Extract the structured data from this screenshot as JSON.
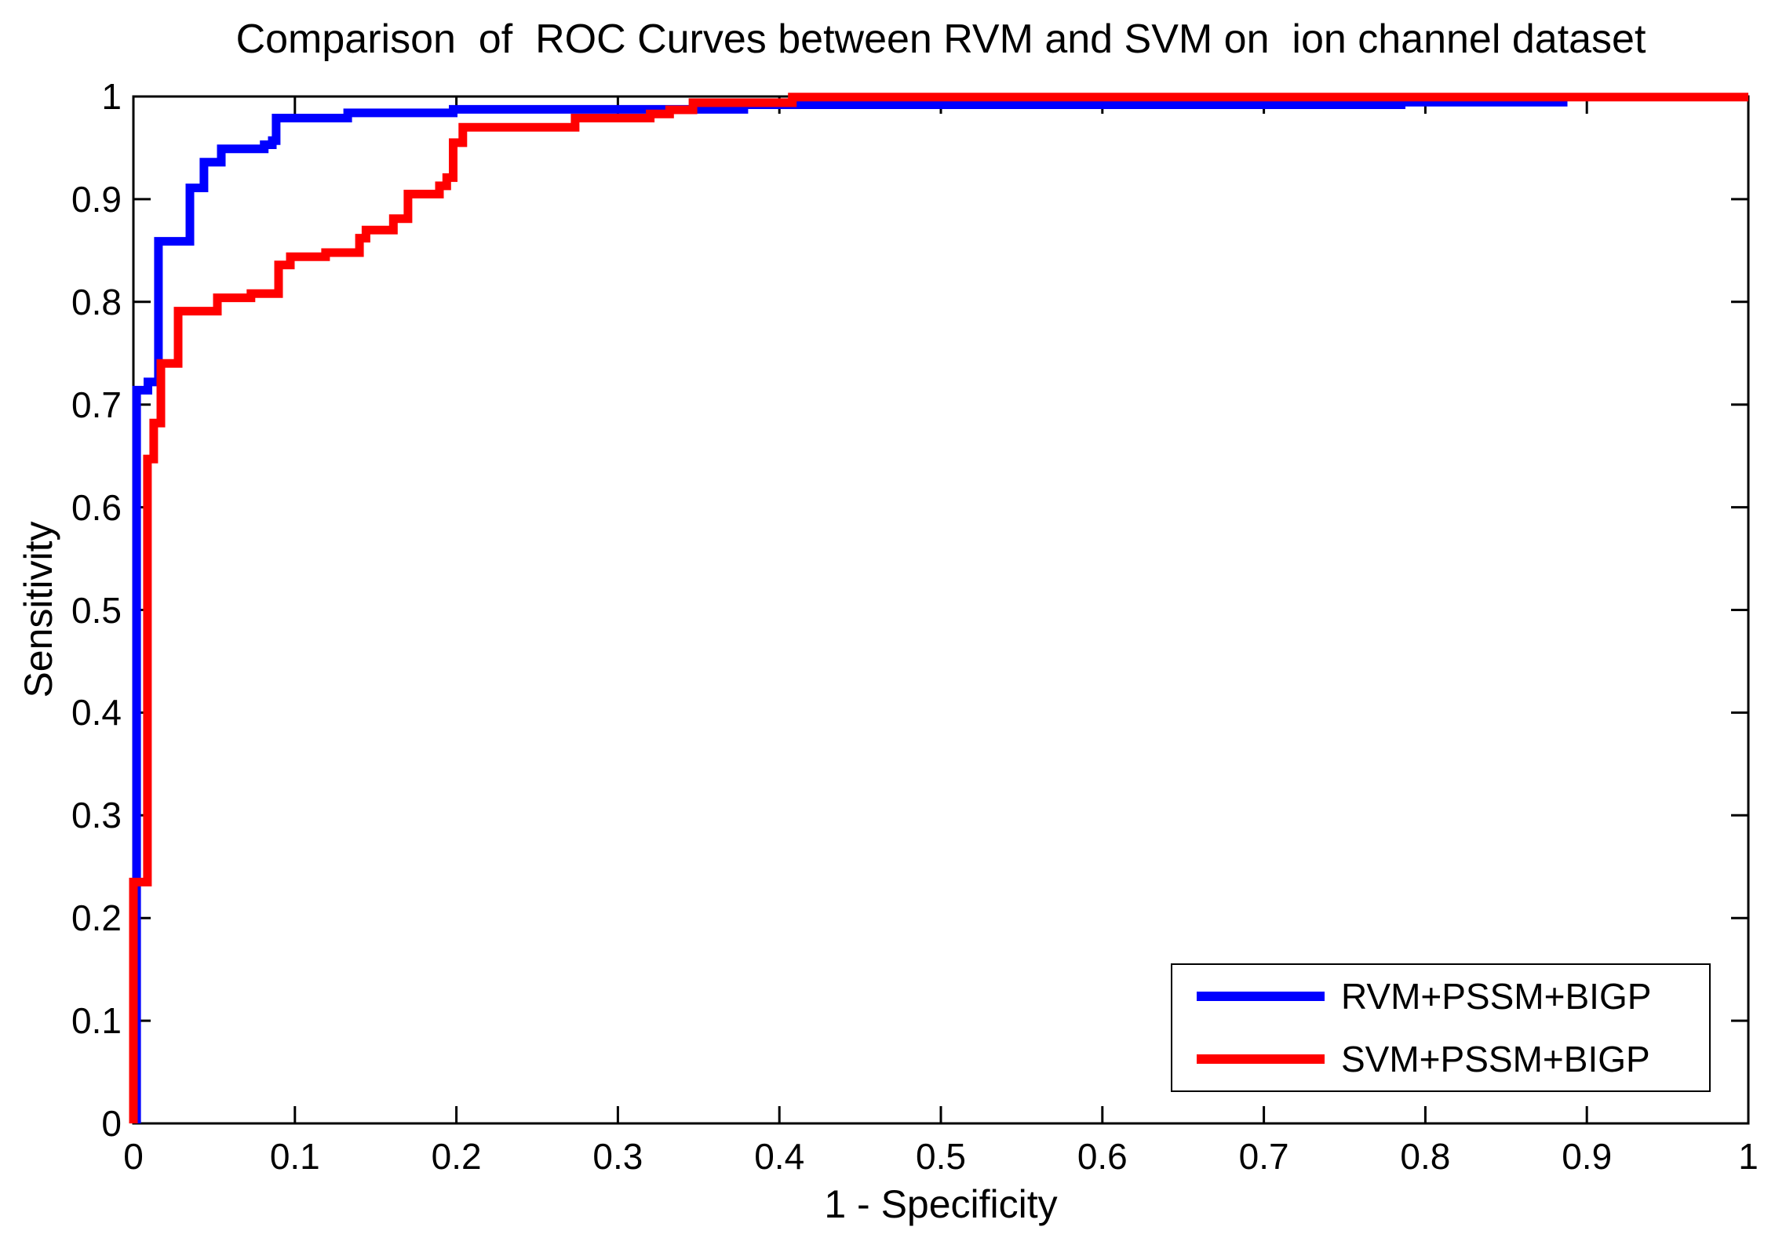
{
  "chart_data": {
    "type": "line",
    "subtype": "roc-step-curves",
    "title": "Comparison  of  ROC Curves between RVM and SVM on  ion channel dataset",
    "xlabel": "1 - Specificity",
    "ylabel": "Sensitivity",
    "xlim": [
      0,
      1
    ],
    "ylim": [
      0,
      1
    ],
    "grid": false,
    "legend_position": "lower right",
    "x_ticks": {
      "values": [
        0,
        0.1,
        0.2,
        0.3,
        0.4,
        0.5,
        0.6,
        0.7,
        0.8,
        0.9,
        1
      ],
      "labels": [
        "0",
        "0.1",
        "0.2",
        "0.3",
        "0.4",
        "0.5",
        "0.6",
        "0.7",
        "0.8",
        "0.9",
        "1"
      ]
    },
    "y_ticks": {
      "values": [
        0,
        0.1,
        0.2,
        0.3,
        0.4,
        0.5,
        0.6,
        0.7,
        0.8,
        0.9,
        1
      ],
      "labels": [
        "0",
        "0.1",
        "0.2",
        "0.3",
        "0.4",
        "0.5",
        "0.6",
        "0.7",
        "0.8",
        "0.9",
        "1"
      ]
    },
    "series": [
      {
        "name": "RVM+PSSM+BIGP",
        "color": "#0000ff",
        "points": [
          [
            0.002,
            0
          ],
          [
            0.002,
            0.714
          ],
          [
            0.009,
            0.714
          ],
          [
            0.009,
            0.722
          ],
          [
            0.0155,
            0.722
          ],
          [
            0.0155,
            0.859
          ],
          [
            0.035,
            0.859
          ],
          [
            0.035,
            0.911
          ],
          [
            0.0437,
            0.911
          ],
          [
            0.0437,
            0.936
          ],
          [
            0.0544,
            0.936
          ],
          [
            0.0544,
            0.949
          ],
          [
            0.081,
            0.949
          ],
          [
            0.081,
            0.953
          ],
          [
            0.086,
            0.953
          ],
          [
            0.086,
            0.957
          ],
          [
            0.0884,
            0.957
          ],
          [
            0.0884,
            0.979
          ],
          [
            0.1327,
            0.979
          ],
          [
            0.1327,
            0.984
          ],
          [
            0.198,
            0.984
          ],
          [
            0.198,
            0.9875
          ],
          [
            0.378,
            0.9875
          ],
          [
            0.378,
            0.992
          ],
          [
            0.785,
            0.992
          ],
          [
            0.785,
            0.9945
          ],
          [
            0.888,
            0.9945
          ]
        ]
      },
      {
        "name": "SVM+PSSM+BIGP",
        "color": "#ff0000",
        "points": [
          [
            0,
            0
          ],
          [
            0,
            0.235
          ],
          [
            0.0087,
            0.235
          ],
          [
            0.0087,
            0.647
          ],
          [
            0.0126,
            0.647
          ],
          [
            0.0126,
            0.682
          ],
          [
            0.017,
            0.682
          ],
          [
            0.017,
            0.74
          ],
          [
            0.0277,
            0.74
          ],
          [
            0.0277,
            0.791
          ],
          [
            0.052,
            0.791
          ],
          [
            0.052,
            0.804
          ],
          [
            0.0728,
            0.804
          ],
          [
            0.0728,
            0.808
          ],
          [
            0.0899,
            0.808
          ],
          [
            0.0899,
            0.836
          ],
          [
            0.0972,
            0.836
          ],
          [
            0.0972,
            0.844
          ],
          [
            0.119,
            0.844
          ],
          [
            0.119,
            0.848
          ],
          [
            0.14,
            0.848
          ],
          [
            0.14,
            0.862
          ],
          [
            0.144,
            0.862
          ],
          [
            0.144,
            0.87
          ],
          [
            0.161,
            0.87
          ],
          [
            0.161,
            0.881
          ],
          [
            0.17,
            0.881
          ],
          [
            0.17,
            0.905
          ],
          [
            0.1895,
            0.905
          ],
          [
            0.1895,
            0.913
          ],
          [
            0.194,
            0.913
          ],
          [
            0.194,
            0.921
          ],
          [
            0.198,
            0.921
          ],
          [
            0.198,
            0.955
          ],
          [
            0.204,
            0.955
          ],
          [
            0.204,
            0.97
          ],
          [
            0.2735,
            0.97
          ],
          [
            0.2735,
            0.979
          ],
          [
            0.32,
            0.979
          ],
          [
            0.32,
            0.983
          ],
          [
            0.332,
            0.983
          ],
          [
            0.332,
            0.987
          ],
          [
            0.3465,
            0.987
          ],
          [
            0.3465,
            0.994
          ],
          [
            0.408,
            0.994
          ],
          [
            0.408,
            0.9995
          ],
          [
            1.0,
            0.9995
          ]
        ]
      }
    ],
    "axis_color": "#000000"
  }
}
